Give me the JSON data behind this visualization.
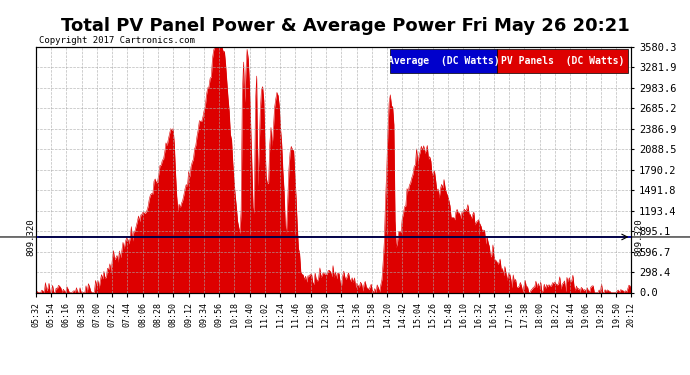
{
  "title": "Total PV Panel Power & Average Power Fri May 26 20:21",
  "copyright": "Copyright 2017 Cartronics.com",
  "avg_line_value": 809.32,
  "avg_line_label": "809.320",
  "ymin": 0.0,
  "ymax": 3580.3,
  "yticks": [
    0.0,
    298.4,
    596.7,
    895.1,
    1193.4,
    1491.8,
    1790.2,
    2088.5,
    2386.9,
    2685.2,
    2983.6,
    3281.9,
    3580.3
  ],
  "ytick_labels": [
    "0.0",
    "298.4",
    "596.7",
    "895.1",
    "1193.4",
    "1491.8",
    "1790.2",
    "2088.5",
    "2386.9",
    "2685.2",
    "2983.6",
    "3281.9",
    "3580.3"
  ],
  "background_color": "#ffffff",
  "plot_bg_color": "#ffffff",
  "grid_color": "#aaaaaa",
  "fill_color": "#dd0000",
  "avg_line_color": "#0000bb",
  "title_fontsize": 13,
  "legend_avg_color": "#0000cc",
  "legend_pv_color": "#dd0000",
  "legend_avg_label": "Average  (DC Watts)",
  "legend_pv_label": "PV Panels  (DC Watts)",
  "xtick_labels": [
    "05:32",
    "05:54",
    "06:16",
    "06:38",
    "07:00",
    "07:22",
    "07:44",
    "08:06",
    "08:28",
    "08:50",
    "09:12",
    "09:34",
    "09:56",
    "10:18",
    "10:40",
    "11:02",
    "11:24",
    "11:46",
    "12:08",
    "12:30",
    "13:14",
    "13:36",
    "13:58",
    "14:20",
    "14:42",
    "15:04",
    "15:26",
    "15:48",
    "16:10",
    "16:32",
    "16:54",
    "17:16",
    "17:38",
    "18:00",
    "18:22",
    "18:44",
    "19:06",
    "19:28",
    "19:50",
    "20:12"
  ]
}
